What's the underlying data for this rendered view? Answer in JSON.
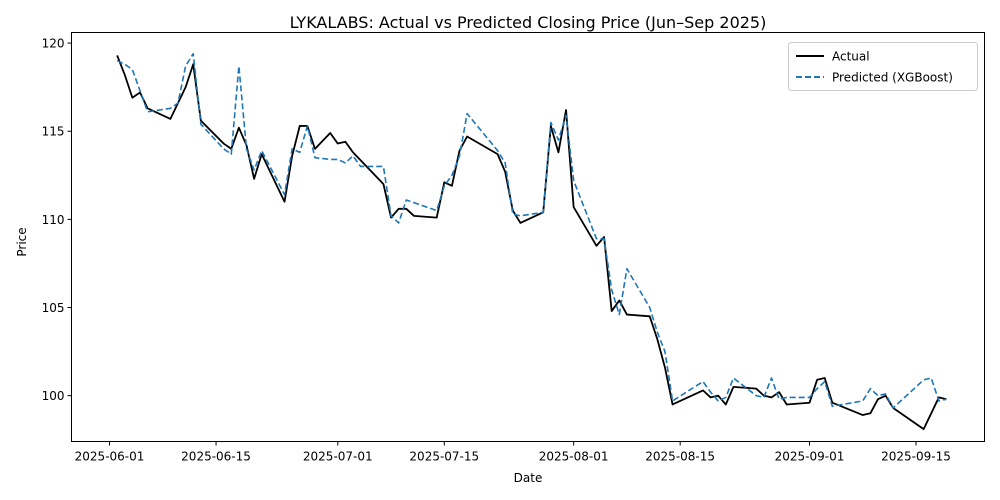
{
  "chart_data": {
    "type": "line",
    "title": "LYKALABS: Actual vs Predicted Closing Price (Jun–Sep 2025)",
    "xlabel": "Date",
    "ylabel": "Price",
    "xlim": [
      "2025-05-27",
      "2025-09-24"
    ],
    "ylim": [
      97.4,
      120.6
    ],
    "x_ticks": [
      "2025-06-01",
      "2025-06-15",
      "2025-07-01",
      "2025-07-15",
      "2025-08-01",
      "2025-08-15",
      "2025-09-01",
      "2025-09-15"
    ],
    "y_ticks": [
      100,
      105,
      110,
      115,
      120
    ],
    "grid": false,
    "legend_position": "top-right",
    "series": [
      {
        "name": "Actual",
        "color": "#000000",
        "style": "solid",
        "points": [
          [
            "2025-06-02",
            119.3
          ],
          [
            "2025-06-03",
            118.2
          ],
          [
            "2025-06-04",
            116.9
          ],
          [
            "2025-06-05",
            117.2
          ],
          [
            "2025-06-06",
            116.3
          ],
          [
            "2025-06-09",
            115.7
          ],
          [
            "2025-06-10",
            116.6
          ],
          [
            "2025-06-11",
            117.5
          ],
          [
            "2025-06-12",
            118.8
          ],
          [
            "2025-06-13",
            115.6
          ],
          [
            "2025-06-16",
            114.3
          ],
          [
            "2025-06-17",
            114.0
          ],
          [
            "2025-06-18",
            115.2
          ],
          [
            "2025-06-19",
            114.2
          ],
          [
            "2025-06-20",
            112.3
          ],
          [
            "2025-06-21",
            113.7
          ],
          [
            "2025-06-24",
            111.0
          ],
          [
            "2025-06-25",
            113.6
          ],
          [
            "2025-06-26",
            115.3
          ],
          [
            "2025-06-27",
            115.3
          ],
          [
            "2025-06-28",
            114.0
          ],
          [
            "2025-06-30",
            114.9
          ],
          [
            "2025-07-01",
            114.3
          ],
          [
            "2025-07-02",
            114.4
          ],
          [
            "2025-07-03",
            113.8
          ],
          [
            "2025-07-07",
            112.0
          ],
          [
            "2025-07-08",
            110.1
          ],
          [
            "2025-07-09",
            110.6
          ],
          [
            "2025-07-10",
            110.6
          ],
          [
            "2025-07-11",
            110.2
          ],
          [
            "2025-07-14",
            110.1
          ],
          [
            "2025-07-15",
            112.1
          ],
          [
            "2025-07-16",
            111.9
          ],
          [
            "2025-07-17",
            113.9
          ],
          [
            "2025-07-18",
            114.7
          ],
          [
            "2025-07-22",
            113.7
          ],
          [
            "2025-07-23",
            112.7
          ],
          [
            "2025-07-24",
            110.5
          ],
          [
            "2025-07-25",
            109.8
          ],
          [
            "2025-07-28",
            110.4
          ],
          [
            "2025-07-29",
            115.3
          ],
          [
            "2025-07-30",
            113.8
          ],
          [
            "2025-07-31",
            116.2
          ],
          [
            "2025-08-01",
            110.7
          ],
          [
            "2025-08-04",
            108.5
          ],
          [
            "2025-08-05",
            109.0
          ],
          [
            "2025-08-06",
            104.8
          ],
          [
            "2025-08-07",
            105.4
          ],
          [
            "2025-08-08",
            104.6
          ],
          [
            "2025-08-11",
            104.5
          ],
          [
            "2025-08-12",
            103.2
          ],
          [
            "2025-08-13",
            101.6
          ],
          [
            "2025-08-14",
            99.5
          ],
          [
            "2025-08-18",
            100.3
          ],
          [
            "2025-08-19",
            99.9
          ],
          [
            "2025-08-20",
            100.0
          ],
          [
            "2025-08-21",
            99.5
          ],
          [
            "2025-08-22",
            100.5
          ],
          [
            "2025-08-25",
            100.4
          ],
          [
            "2025-08-26",
            100.0
          ],
          [
            "2025-08-27",
            99.9
          ],
          [
            "2025-08-28",
            100.2
          ],
          [
            "2025-08-29",
            99.5
          ],
          [
            "2025-09-01",
            99.6
          ],
          [
            "2025-09-02",
            100.9
          ],
          [
            "2025-09-03",
            101.0
          ],
          [
            "2025-09-04",
            99.6
          ],
          [
            "2025-09-08",
            98.9
          ],
          [
            "2025-09-09",
            99.0
          ],
          [
            "2025-09-10",
            99.8
          ],
          [
            "2025-09-11",
            100.0
          ],
          [
            "2025-09-12",
            99.3
          ],
          [
            "2025-09-16",
            98.1
          ],
          [
            "2025-09-18",
            99.9
          ],
          [
            "2025-09-19",
            99.8
          ]
        ]
      },
      {
        "name": "Predicted (XGBoost)",
        "color": "#1f77b4",
        "style": "dashed",
        "points": [
          [
            "2025-06-02",
            119.0
          ],
          [
            "2025-06-03",
            118.8
          ],
          [
            "2025-06-04",
            118.5
          ],
          [
            "2025-06-05",
            117.3
          ],
          [
            "2025-06-06",
            116.1
          ],
          [
            "2025-06-09",
            116.3
          ],
          [
            "2025-06-10",
            116.6
          ],
          [
            "2025-06-11",
            118.7
          ],
          [
            "2025-06-12",
            119.4
          ],
          [
            "2025-06-13",
            115.4
          ],
          [
            "2025-06-16",
            114.0
          ],
          [
            "2025-06-17",
            113.7
          ],
          [
            "2025-06-18",
            118.7
          ],
          [
            "2025-06-19",
            114.0
          ],
          [
            "2025-06-20",
            112.8
          ],
          [
            "2025-06-21",
            113.9
          ],
          [
            "2025-06-24",
            111.4
          ],
          [
            "2025-06-25",
            114.0
          ],
          [
            "2025-06-26",
            113.8
          ],
          [
            "2025-06-27",
            115.3
          ],
          [
            "2025-06-28",
            113.5
          ],
          [
            "2025-06-30",
            113.4
          ],
          [
            "2025-07-01",
            113.4
          ],
          [
            "2025-07-02",
            113.2
          ],
          [
            "2025-07-03",
            113.6
          ],
          [
            "2025-07-04",
            113.0
          ],
          [
            "2025-07-07",
            113.0
          ],
          [
            "2025-07-08",
            110.2
          ],
          [
            "2025-07-09",
            109.8
          ],
          [
            "2025-07-10",
            111.1
          ],
          [
            "2025-07-14",
            110.5
          ],
          [
            "2025-07-15",
            111.9
          ],
          [
            "2025-07-16",
            112.5
          ],
          [
            "2025-07-17",
            113.6
          ],
          [
            "2025-07-18",
            116.0
          ],
          [
            "2025-07-22",
            113.9
          ],
          [
            "2025-07-23",
            113.2
          ],
          [
            "2025-07-24",
            110.3
          ],
          [
            "2025-07-25",
            110.2
          ],
          [
            "2025-07-28",
            110.4
          ],
          [
            "2025-07-29",
            115.5
          ],
          [
            "2025-07-30",
            114.5
          ],
          [
            "2025-07-31",
            115.9
          ],
          [
            "2025-08-01",
            112.2
          ],
          [
            "2025-08-04",
            108.9
          ],
          [
            "2025-08-05",
            108.9
          ],
          [
            "2025-08-06",
            106.0
          ],
          [
            "2025-08-07",
            104.6
          ],
          [
            "2025-08-08",
            107.2
          ],
          [
            "2025-08-11",
            105.0
          ],
          [
            "2025-08-12",
            103.6
          ],
          [
            "2025-08-13",
            102.5
          ],
          [
            "2025-08-14",
            99.7
          ],
          [
            "2025-08-18",
            100.8
          ],
          [
            "2025-08-19",
            100.2
          ],
          [
            "2025-08-20",
            99.7
          ],
          [
            "2025-08-21",
            99.9
          ],
          [
            "2025-08-22",
            101.0
          ],
          [
            "2025-08-25",
            100.0
          ],
          [
            "2025-08-26",
            99.9
          ],
          [
            "2025-08-27",
            101.0
          ],
          [
            "2025-08-28",
            99.8
          ],
          [
            "2025-08-29",
            99.9
          ],
          [
            "2025-09-01",
            99.9
          ],
          [
            "2025-09-02",
            100.4
          ],
          [
            "2025-09-03",
            100.8
          ],
          [
            "2025-09-04",
            99.4
          ],
          [
            "2025-09-08",
            99.7
          ],
          [
            "2025-09-09",
            100.4
          ],
          [
            "2025-09-10",
            100.0
          ],
          [
            "2025-09-11",
            100.1
          ],
          [
            "2025-09-12",
            99.3
          ],
          [
            "2025-09-16",
            100.9
          ],
          [
            "2025-09-17",
            101.0
          ],
          [
            "2025-09-18",
            99.7
          ],
          [
            "2025-09-19",
            99.8
          ]
        ]
      }
    ]
  }
}
